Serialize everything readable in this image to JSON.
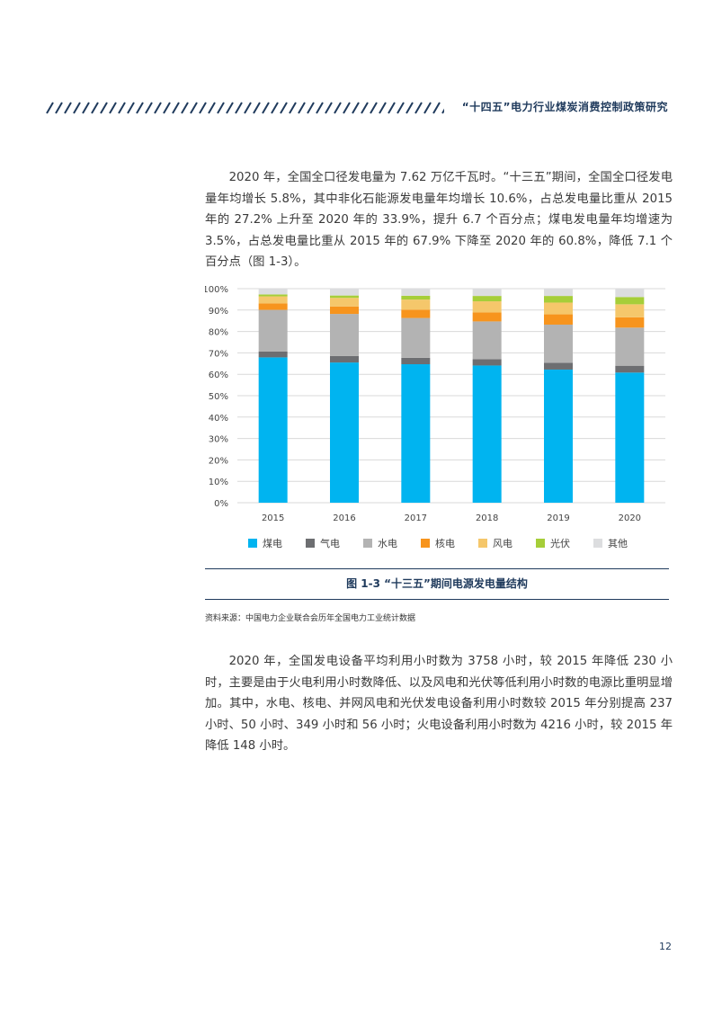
{
  "header": {
    "running_title": "“十四五”电力行业煤炭消费控制政策研究"
  },
  "paragraphs": {
    "p1": "2020 年，全国全口径发电量为 7.62 万亿千瓦时。“十三五”期间，全国全口径发电量年均增长 5.8%，其中非化石能源发电量年均增长 10.6%，占总发电量比重从 2015 年的 27.2% 上升至 2020 年的 33.9%，提升 6.7 个百分点；煤电发电量年均增速为 3.5%，占总发电量比重从 2015 年的 67.9% 下降至 2020 年的 60.8%，降低 7.1 个百分点（图 1-3）。",
    "p2": "2020 年，全国发电设备平均利用小时数为 3758 小时，较 2015 年降低 230 小时，主要是由于火电利用小时数降低、以及风电和光伏等低利用小时数的电源比重明显增加。其中，水电、核电、并网风电和光伏发电设备利用小时数较 2015 年分别提高 237 小时、50 小时、349 小时和 56 小时；火电设备利用小时数为 4216 小时，较 2015 年降低 148 小时。"
  },
  "figure": {
    "caption": "图 1-3 “十三五”期间电源发电量结构",
    "source": "资料来源：中国电力企业联合会历年全国电力工业统计数据"
  },
  "chart_data": {
    "type": "bar",
    "stacked": true,
    "categories": [
      "2015",
      "2016",
      "2017",
      "2018",
      "2019",
      "2020"
    ],
    "ylim": [
      0,
      100
    ],
    "yticks": [
      "0%",
      "10%",
      "20%",
      "30%",
      "40%",
      "50%",
      "60%",
      "70%",
      "80%",
      "90%",
      "100%"
    ],
    "grid": true,
    "legend_position": "bottom",
    "series": [
      {
        "name": "煤电",
        "color": "#00b4f0",
        "values": [
          67.9,
          65.5,
          64.7,
          64.1,
          62.2,
          60.8
        ]
      },
      {
        "name": "气电",
        "color": "#6d6e71",
        "values": [
          2.7,
          3.0,
          3.0,
          3.0,
          3.2,
          3.2
        ]
      },
      {
        "name": "水电",
        "color": "#b3b3b3",
        "values": [
          19.5,
          19.7,
          18.6,
          17.6,
          17.8,
          17.8
        ]
      },
      {
        "name": "核电",
        "color": "#f7941d",
        "values": [
          3.0,
          3.5,
          3.9,
          4.2,
          4.8,
          4.8
        ]
      },
      {
        "name": "风电",
        "color": "#f5c76b",
        "values": [
          3.3,
          4.0,
          4.7,
          5.2,
          5.5,
          6.1
        ]
      },
      {
        "name": "光伏",
        "color": "#a6ce39",
        "values": [
          0.9,
          1.1,
          1.8,
          2.5,
          3.1,
          3.4
        ]
      },
      {
        "name": "其他",
        "color": "#dcdddf",
        "values": [
          2.7,
          3.2,
          3.3,
          3.4,
          3.4,
          3.9
        ]
      }
    ]
  },
  "page": {
    "number": "12"
  }
}
